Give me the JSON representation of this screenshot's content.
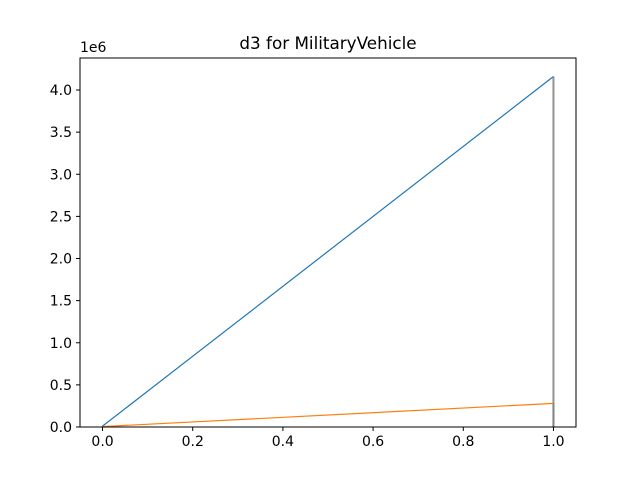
{
  "chart_data": {
    "type": "bar",
    "title": "d3 for MilitaryVehicle",
    "xlabel": "",
    "ylabel": "",
    "y_offset_label": "1e6",
    "xlim": [
      -0.05,
      1.05
    ],
    "ylim": [
      0,
      4380000
    ],
    "x_ticks": [
      0.0,
      0.2,
      0.4,
      0.6,
      0.8,
      1.0
    ],
    "x_tick_labels": [
      "0.0",
      "0.2",
      "0.4",
      "0.6",
      "0.8",
      "1.0"
    ],
    "y_ticks": [
      0,
      500000,
      1000000,
      1500000,
      2000000,
      2500000,
      3000000,
      3500000,
      4000000
    ],
    "y_tick_labels": [
      "0.0",
      "0.5",
      "1.0",
      "1.5",
      "2.0",
      "2.5",
      "3.0",
      "3.5",
      "4.0"
    ],
    "grid": false,
    "series": [
      {
        "color": "#1f77b4",
        "points": [
          {
            "x": 0.0,
            "y": 10000
          },
          {
            "x": 1.0,
            "y": 4160000
          }
        ]
      },
      {
        "color": "#ff7f0e",
        "points": [
          {
            "x": 0.0,
            "y": 5000
          },
          {
            "x": 1.0,
            "y": 280000
          }
        ]
      }
    ],
    "bar_overlay_color": "#808080"
  }
}
